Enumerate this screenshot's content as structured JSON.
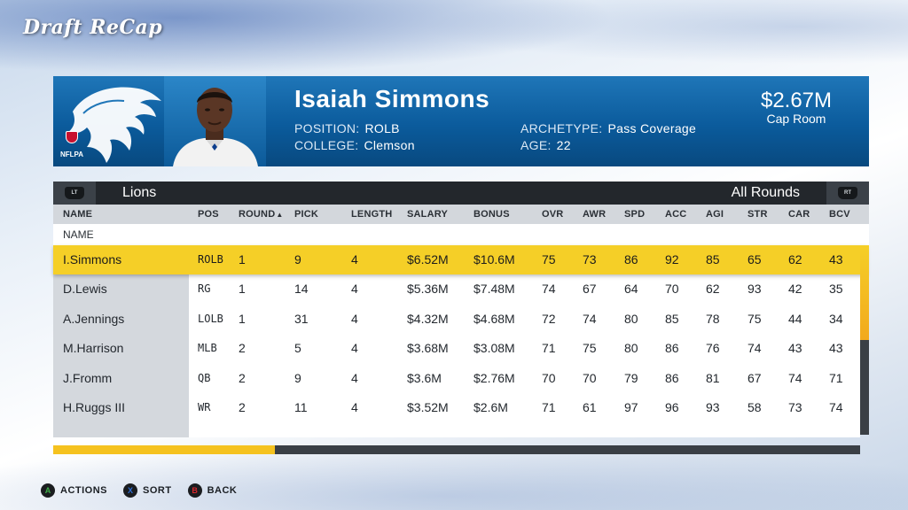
{
  "page": {
    "title": "Draft ReCap"
  },
  "player": {
    "name": "Isaiah Simmons",
    "position_label": "POSITION:",
    "position": "ROLB",
    "college_label": "COLLEGE:",
    "college": "Clemson",
    "archetype_label": "ARCHETYPE:",
    "archetype": "Pass Coverage",
    "age_label": "AGE:",
    "age": "22",
    "badge": "NFLPA"
  },
  "cap": {
    "value": "$2.67M",
    "label": "Cap Room"
  },
  "team_bar": {
    "team": "Lions",
    "rounds": "All Rounds",
    "lt_label": "LT",
    "rt_label": "RT"
  },
  "table": {
    "columns": [
      "NAME",
      "POS",
      "ROUND",
      "PICK",
      "LENGTH",
      "SALARY",
      "BONUS",
      "OVR",
      "AWR",
      "SPD",
      "ACC",
      "AGI",
      "STR",
      "CAR",
      "BCV"
    ],
    "sort_indicator": "▲",
    "subheader": "NAME",
    "rows": [
      [
        "I.Simmons",
        "ROLB",
        "1",
        "9",
        "4",
        "$6.52M",
        "$10.6M",
        "75",
        "73",
        "86",
        "92",
        "85",
        "65",
        "62",
        "43"
      ],
      [
        "D.Lewis",
        "RG",
        "1",
        "14",
        "4",
        "$5.36M",
        "$7.48M",
        "74",
        "67",
        "64",
        "70",
        "62",
        "93",
        "42",
        "35"
      ],
      [
        "A.Jennings",
        "LOLB",
        "1",
        "31",
        "4",
        "$4.32M",
        "$4.68M",
        "72",
        "74",
        "80",
        "85",
        "78",
        "75",
        "44",
        "34"
      ],
      [
        "M.Harrison",
        "MLB",
        "2",
        "5",
        "4",
        "$3.68M",
        "$3.08M",
        "71",
        "75",
        "80",
        "86",
        "76",
        "74",
        "43",
        "43"
      ],
      [
        "J.Fromm",
        "QB",
        "2",
        "9",
        "4",
        "$3.6M",
        "$2.76M",
        "70",
        "70",
        "79",
        "86",
        "81",
        "67",
        "74",
        "71"
      ],
      [
        "H.Ruggs III",
        "WR",
        "2",
        "11",
        "4",
        "$3.52M",
        "$2.6M",
        "71",
        "61",
        "97",
        "96",
        "93",
        "58",
        "73",
        "74"
      ]
    ],
    "selected_row": 0
  },
  "progress": {
    "fraction": 0.275
  },
  "scroll": {
    "fraction": 0.5
  },
  "legend": [
    {
      "glyph": "A",
      "label": "ACTIONS",
      "color": "#3fae49"
    },
    {
      "glyph": "X",
      "label": "SORT",
      "color": "#2f6fd6"
    },
    {
      "glyph": "B",
      "label": "BACK",
      "color": "#d8262c"
    }
  ],
  "colors": {
    "accent": "#f5cf27",
    "header_blue": "#0b5b9c"
  }
}
